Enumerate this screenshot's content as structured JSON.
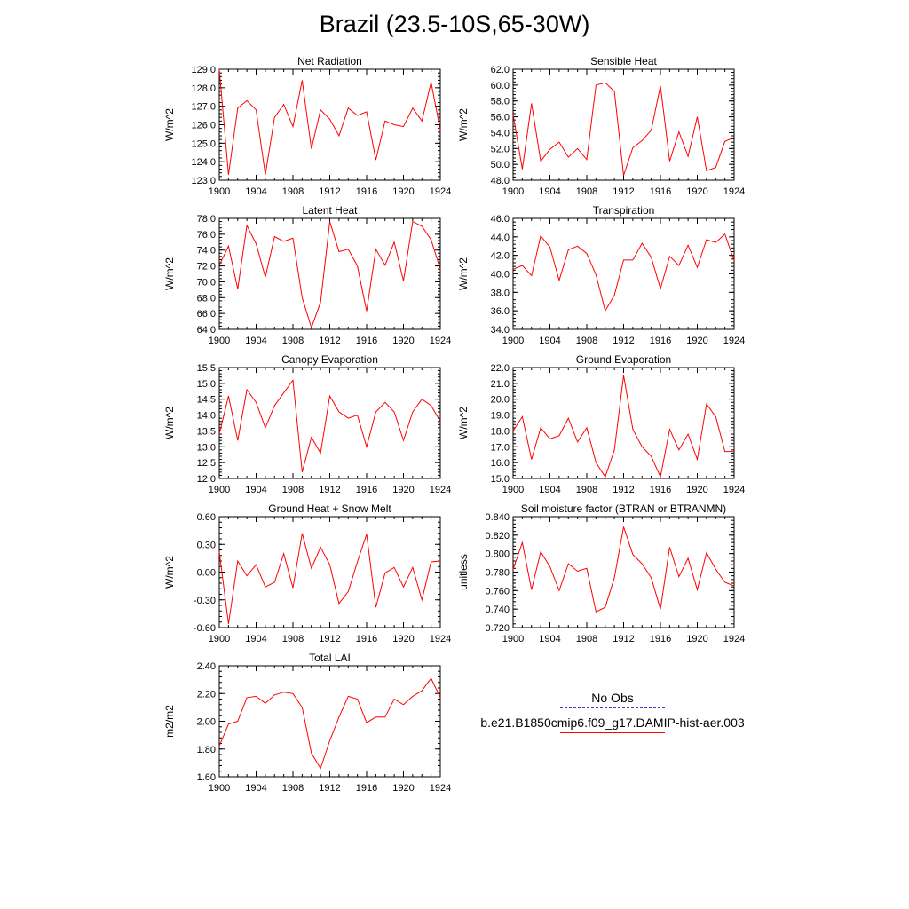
{
  "figure": {
    "title": "Brazil (23.5-10S,65-30W)"
  },
  "legend": {
    "entries": [
      {
        "label": "No Obs",
        "color": "#3b3bd6",
        "style": "dashed"
      },
      {
        "label": "b.e21.B1850cmip6.f09_g17.DAMIP-hist-aer.003",
        "color": "#ff0000",
        "style": "solid"
      }
    ]
  },
  "chart_data": [
    {
      "type": "line",
      "title": "Net Radiation",
      "ylabel": "W/m^2",
      "xlim": [
        1900,
        1924
      ],
      "ylim": [
        123.0,
        129.0
      ],
      "xticks": [
        "1900",
        "1904",
        "1908",
        "1912",
        "1916",
        "1920",
        "1924"
      ],
      "yticks": [
        "123.0",
        "124.0",
        "125.0",
        "126.0",
        "127.0",
        "128.0",
        "129.0"
      ],
      "series": [
        {
          "color": "#ff0000",
          "x": [
            1900,
            1901,
            1902,
            1903,
            1904,
            1905,
            1906,
            1907,
            1908,
            1909,
            1910,
            1911,
            1912,
            1913,
            1914,
            1915,
            1916,
            1917,
            1918,
            1919,
            1920,
            1921,
            1922,
            1923,
            1924
          ],
          "y": [
            129.0,
            123.3,
            126.9,
            127.3,
            126.8,
            123.3,
            126.4,
            127.1,
            125.9,
            128.4,
            124.7,
            126.8,
            126.3,
            125.4,
            126.9,
            126.5,
            126.7,
            124.1,
            126.2,
            126.0,
            125.9,
            126.9,
            126.2,
            128.3,
            125.7
          ]
        }
      ]
    },
    {
      "type": "line",
      "title": "Sensible Heat",
      "ylabel": "W/m^2",
      "xlim": [
        1900,
        1924
      ],
      "ylim": [
        48.0,
        62.0
      ],
      "xticks": [
        "1900",
        "1904",
        "1908",
        "1912",
        "1916",
        "1920",
        "1924"
      ],
      "yticks": [
        "48.0",
        "50.0",
        "52.0",
        "54.0",
        "56.0",
        "58.0",
        "60.0",
        "62.0"
      ],
      "series": [
        {
          "color": "#ff0000",
          "x": [
            1900,
            1901,
            1902,
            1903,
            1904,
            1905,
            1906,
            1907,
            1908,
            1909,
            1910,
            1911,
            1912,
            1913,
            1914,
            1915,
            1916,
            1917,
            1918,
            1919,
            1920,
            1921,
            1922,
            1923,
            1924
          ],
          "y": [
            56.3,
            49.4,
            57.7,
            50.4,
            51.9,
            52.8,
            50.9,
            52.0,
            50.6,
            60.0,
            60.3,
            59.2,
            48.6,
            52.1,
            53.0,
            54.3,
            59.9,
            50.4,
            54.1,
            51.0,
            56.0,
            49.2,
            49.6,
            52.9,
            53.4
          ]
        }
      ]
    },
    {
      "type": "line",
      "title": "Latent Heat",
      "ylabel": "W/m^2",
      "xlim": [
        1900,
        1924
      ],
      "ylim": [
        64.0,
        78.0
      ],
      "xticks": [
        "1900",
        "1904",
        "1908",
        "1912",
        "1916",
        "1920",
        "1924"
      ],
      "yticks": [
        "64.0",
        "66.0",
        "68.0",
        "70.0",
        "72.0",
        "74.0",
        "76.0",
        "78.0"
      ],
      "series": [
        {
          "color": "#ff0000",
          "x": [
            1900,
            1901,
            1902,
            1903,
            1904,
            1905,
            1906,
            1907,
            1908,
            1909,
            1910,
            1911,
            1912,
            1913,
            1914,
            1915,
            1916,
            1917,
            1918,
            1919,
            1920,
            1921,
            1922,
            1923,
            1924
          ],
          "y": [
            72.1,
            74.5,
            69.1,
            77.1,
            74.8,
            70.6,
            75.7,
            75.1,
            75.5,
            68.0,
            64.2,
            67.4,
            77.6,
            73.8,
            74.1,
            72.0,
            66.3,
            74.1,
            72.1,
            75.0,
            70.1,
            77.6,
            77.0,
            75.3,
            71.6
          ]
        }
      ]
    },
    {
      "type": "line",
      "title": "Transpiration",
      "ylabel": "W/m^2",
      "xlim": [
        1900,
        1924
      ],
      "ylim": [
        34.0,
        46.0
      ],
      "xticks": [
        "1900",
        "1904",
        "1908",
        "1912",
        "1916",
        "1920",
        "1924"
      ],
      "yticks": [
        "34.0",
        "36.0",
        "38.0",
        "40.0",
        "42.0",
        "44.0",
        "46.0"
      ],
      "series": [
        {
          "color": "#ff0000",
          "x": [
            1900,
            1901,
            1902,
            1903,
            1904,
            1905,
            1906,
            1907,
            1908,
            1909,
            1910,
            1911,
            1912,
            1913,
            1914,
            1915,
            1916,
            1917,
            1918,
            1919,
            1920,
            1921,
            1922,
            1923,
            1924
          ],
          "y": [
            40.5,
            40.9,
            39.8,
            44.1,
            42.9,
            39.3,
            42.6,
            43.0,
            42.2,
            39.9,
            36.0,
            37.7,
            41.5,
            41.5,
            43.3,
            41.8,
            38.4,
            41.9,
            40.9,
            43.1,
            40.7,
            43.7,
            43.4,
            44.3,
            41.4
          ]
        }
      ]
    },
    {
      "type": "line",
      "title": "Canopy Evaporation",
      "ylabel": "W/m^2",
      "xlim": [
        1900,
        1924
      ],
      "ylim": [
        12.0,
        15.5
      ],
      "xticks": [
        "1900",
        "1904",
        "1908",
        "1912",
        "1916",
        "1920",
        "1924"
      ],
      "yticks": [
        "12.0",
        "12.5",
        "13.0",
        "13.5",
        "14.0",
        "14.5",
        "15.0",
        "15.5"
      ],
      "series": [
        {
          "color": "#ff0000",
          "x": [
            1900,
            1901,
            1902,
            1903,
            1904,
            1905,
            1906,
            1907,
            1908,
            1909,
            1910,
            1911,
            1912,
            1913,
            1914,
            1915,
            1916,
            1917,
            1918,
            1919,
            1920,
            1921,
            1922,
            1923,
            1924
          ],
          "y": [
            13.4,
            14.6,
            13.2,
            14.8,
            14.4,
            13.6,
            14.3,
            14.7,
            15.1,
            12.2,
            13.3,
            12.8,
            14.6,
            14.1,
            13.9,
            14.0,
            13.0,
            14.1,
            14.4,
            14.1,
            13.2,
            14.1,
            14.5,
            14.3,
            13.8
          ]
        }
      ]
    },
    {
      "type": "line",
      "title": "Ground Evaporation",
      "ylabel": "W/m^2",
      "xlim": [
        1900,
        1924
      ],
      "ylim": [
        15.0,
        22.0
      ],
      "xticks": [
        "1900",
        "1904",
        "1908",
        "1912",
        "1916",
        "1920",
        "1924"
      ],
      "yticks": [
        "15.0",
        "16.0",
        "17.0",
        "18.0",
        "19.0",
        "20.0",
        "21.0",
        "22.0"
      ],
      "series": [
        {
          "color": "#ff0000",
          "x": [
            1900,
            1901,
            1902,
            1903,
            1904,
            1905,
            1906,
            1907,
            1908,
            1909,
            1910,
            1911,
            1912,
            1913,
            1914,
            1915,
            1916,
            1917,
            1918,
            1919,
            1920,
            1921,
            1922,
            1923,
            1924
          ],
          "y": [
            18.0,
            18.9,
            16.2,
            18.2,
            17.5,
            17.7,
            18.8,
            17.3,
            18.2,
            16.0,
            15.1,
            16.8,
            21.5,
            18.1,
            17.0,
            16.4,
            15.1,
            18.1,
            16.8,
            17.8,
            16.2,
            19.7,
            18.9,
            16.7,
            16.7
          ]
        }
      ]
    },
    {
      "type": "line",
      "title": "Ground Heat + Snow Melt",
      "ylabel": "W/m^2",
      "xlim": [
        1900,
        1924
      ],
      "ylim": [
        -0.6,
        0.6
      ],
      "xticks": [
        "1900",
        "1904",
        "1908",
        "1912",
        "1916",
        "1920",
        "1924"
      ],
      "yticks": [
        "-0.60",
        "-0.30",
        "0.00",
        "0.30",
        "0.60"
      ],
      "series": [
        {
          "color": "#ff0000",
          "x": [
            1900,
            1901,
            1902,
            1903,
            1904,
            1905,
            1906,
            1907,
            1908,
            1909,
            1910,
            1911,
            1912,
            1913,
            1914,
            1915,
            1916,
            1917,
            1918,
            1919,
            1920,
            1921,
            1922,
            1923,
            1924
          ],
          "y": [
            0.22,
            -0.56,
            0.12,
            -0.04,
            0.08,
            -0.16,
            -0.11,
            0.2,
            -0.17,
            0.42,
            0.04,
            0.27,
            0.08,
            -0.34,
            -0.21,
            0.11,
            0.41,
            -0.38,
            -0.01,
            0.05,
            -0.16,
            0.05,
            -0.3,
            0.11,
            0.12
          ]
        }
      ]
    },
    {
      "type": "line",
      "title": "Soil moisture factor (BTRAN or BTRANMN)",
      "ylabel": "unitless",
      "xlim": [
        1900,
        1924
      ],
      "ylim": [
        0.72,
        0.84
      ],
      "xticks": [
        "1900",
        "1904",
        "1908",
        "1912",
        "1916",
        "1920",
        "1924"
      ],
      "yticks": [
        "0.720",
        "0.740",
        "0.760",
        "0.780",
        "0.800",
        "0.820",
        "0.840"
      ],
      "series": [
        {
          "color": "#ff0000",
          "x": [
            1900,
            1901,
            1902,
            1903,
            1904,
            1905,
            1906,
            1907,
            1908,
            1909,
            1910,
            1911,
            1912,
            1913,
            1914,
            1915,
            1916,
            1917,
            1918,
            1919,
            1920,
            1921,
            1922,
            1923,
            1924
          ],
          "y": [
            0.783,
            0.812,
            0.761,
            0.802,
            0.786,
            0.76,
            0.789,
            0.781,
            0.784,
            0.737,
            0.742,
            0.774,
            0.829,
            0.799,
            0.789,
            0.774,
            0.74,
            0.807,
            0.775,
            0.795,
            0.761,
            0.801,
            0.783,
            0.769,
            0.765
          ]
        }
      ]
    },
    {
      "type": "line",
      "title": "Total LAI",
      "ylabel": "m2/m2",
      "xlim": [
        1900,
        1924
      ],
      "ylim": [
        1.6,
        2.4
      ],
      "xticks": [
        "1900",
        "1904",
        "1908",
        "1912",
        "1916",
        "1920",
        "1924"
      ],
      "yticks": [
        "1.60",
        "1.80",
        "2.00",
        "2.20",
        "2.40"
      ],
      "series": [
        {
          "color": "#ff0000",
          "x": [
            1900,
            1901,
            1902,
            1903,
            1904,
            1905,
            1906,
            1907,
            1908,
            1909,
            1910,
            1911,
            1912,
            1913,
            1914,
            1915,
            1916,
            1917,
            1918,
            1919,
            1920,
            1921,
            1922,
            1923,
            1924
          ],
          "y": [
            1.82,
            1.98,
            2.0,
            2.17,
            2.18,
            2.13,
            2.19,
            2.21,
            2.2,
            2.1,
            1.77,
            1.66,
            1.86,
            2.03,
            2.18,
            2.16,
            1.99,
            2.03,
            2.03,
            2.16,
            2.12,
            2.18,
            2.22,
            2.31,
            2.17
          ]
        }
      ]
    }
  ]
}
